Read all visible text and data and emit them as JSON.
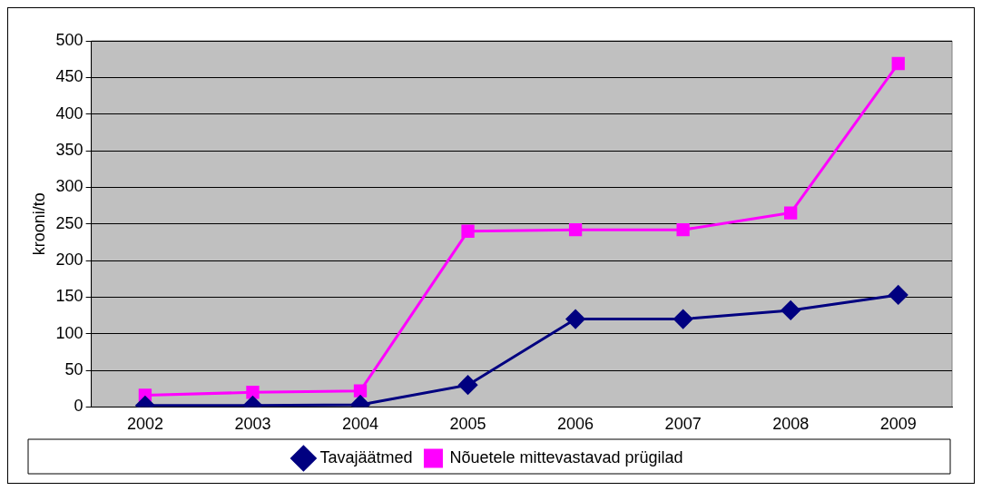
{
  "chart_data": {
    "type": "line",
    "ylabel": "krooni/to",
    "categories": [
      "2002",
      "2003",
      "2004",
      "2005",
      "2006",
      "2007",
      "2008",
      "2009"
    ],
    "series": [
      {
        "name": "Tavajäätmed",
        "color": "#000080",
        "marker": "diamond",
        "values": [
          2,
          2,
          3,
          30,
          120,
          120,
          132,
          153
        ]
      },
      {
        "name": "Nõuetele mittevastavad prügilad",
        "color": "#ff00ff",
        "marker": "square",
        "values": [
          16,
          20,
          22,
          240,
          242,
          242,
          265,
          469
        ]
      }
    ],
    "ylim": [
      0,
      500
    ],
    "yticks": [
      0,
      50,
      100,
      150,
      200,
      250,
      300,
      350,
      400,
      450,
      500
    ],
    "grid": "y",
    "legend": "bottom",
    "line_style": "solid"
  }
}
